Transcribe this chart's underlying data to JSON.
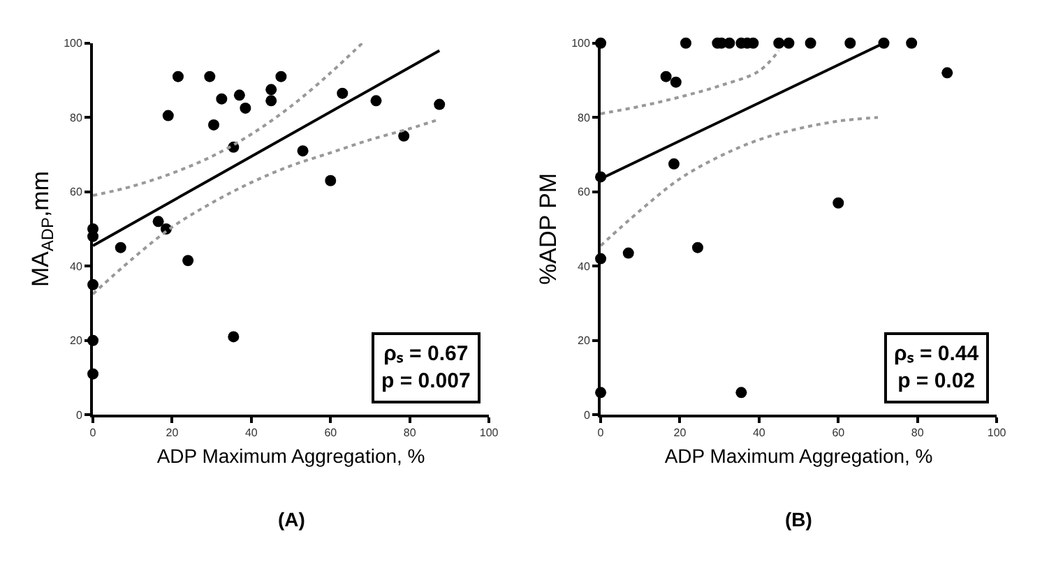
{
  "chart_data": [
    {
      "type": "scatter",
      "xlabel": "ADP Maximum Aggregation, %",
      "ylabel": "MA$_{ADP}$,mm",
      "xlim": [
        0,
        100
      ],
      "ylim": [
        0,
        100
      ],
      "xticks": [
        0,
        20,
        40,
        60,
        80,
        100
      ],
      "yticks": [
        0,
        20,
        40,
        60,
        80,
        100
      ],
      "annotations": [
        "ρₛ = 0.67\np = 0.007",
        "(A)"
      ],
      "series": [
        {
          "marker": "circle",
          "color": "#000000",
          "x": [
            0,
            0,
            0,
            0,
            0,
            7,
            16.5,
            18.5,
            19,
            21.5,
            24,
            29.5,
            30.5,
            32.5,
            35.5,
            35.5,
            37,
            38.5,
            45,
            45,
            47.5,
            53,
            60,
            63,
            71.5,
            78.5,
            87.5
          ],
          "values": [
            50,
            48,
            35,
            20,
            11,
            45,
            52,
            50,
            80.5,
            91,
            41.5,
            91,
            78,
            85,
            72,
            21,
            86,
            82.5,
            87.5,
            84.5,
            91,
            71,
            63,
            86.5,
            84.5,
            75,
            83.5
          ]
        },
        {
          "type": "line",
          "line_style": "solid",
          "color": "#000000",
          "x": [
            0,
            87.5
          ],
          "values": [
            45.5,
            98
          ]
        },
        {
          "type": "line",
          "line_style": "dotted",
          "color": "#999999",
          "x": [
            0,
            10,
            20,
            30,
            40,
            50,
            60,
            68
          ],
          "values": [
            59,
            61.5,
            65,
            69.5,
            75.5,
            83,
            92,
            100
          ]
        },
        {
          "type": "line",
          "line_style": "dotted",
          "color": "#999999",
          "x": [
            0,
            10,
            20,
            30,
            40,
            50,
            60,
            70,
            80,
            87.5
          ],
          "values": [
            32.5,
            42,
            50.5,
            57,
            62.5,
            67,
            70.5,
            74,
            77,
            79.5
          ]
        }
      ]
    },
    {
      "type": "scatter",
      "xlabel": "ADP Maximum Aggregation, %",
      "ylabel": "%ADP PM",
      "xlim": [
        0,
        100
      ],
      "ylim": [
        0,
        100
      ],
      "xticks": [
        0,
        20,
        40,
        60,
        80,
        100
      ],
      "yticks": [
        0,
        20,
        40,
        60,
        80,
        100
      ],
      "annotations": [
        "ρₛ = 0.44\np = 0.02",
        "(B)"
      ],
      "series": [
        {
          "marker": "circle",
          "color": "#000000",
          "x": [
            0,
            0,
            0,
            0,
            7,
            16.5,
            19,
            18.5,
            21.5,
            24.5,
            29.5,
            30.5,
            32.5,
            35.5,
            37,
            38.5,
            35.5,
            45,
            47.5,
            53,
            60,
            63,
            71.5,
            78.5,
            87.5
          ],
          "values": [
            100,
            64,
            42,
            6,
            43.5,
            91,
            89.5,
            67.5,
            100,
            45,
            100,
            100,
            100,
            100,
            100,
            100,
            6,
            100,
            100,
            100,
            57,
            100,
            100,
            100,
            92
          ]
        },
        {
          "type": "line",
          "line_style": "solid",
          "color": "#000000",
          "x": [
            0,
            71.5
          ],
          "values": [
            63.5,
            100
          ]
        },
        {
          "type": "line",
          "line_style": "dotted",
          "color": "#999999",
          "x": [
            0,
            10,
            20,
            30,
            40,
            45
          ],
          "values": [
            81,
            83,
            85.5,
            88.5,
            92.5,
            98
          ]
        },
        {
          "type": "line",
          "line_style": "dotted",
          "color": "#999999",
          "x": [
            0,
            10,
            20,
            30,
            40,
            50,
            60,
            70
          ],
          "values": [
            45.5,
            55,
            63.5,
            69.5,
            74,
            77,
            79,
            80
          ]
        }
      ]
    }
  ]
}
